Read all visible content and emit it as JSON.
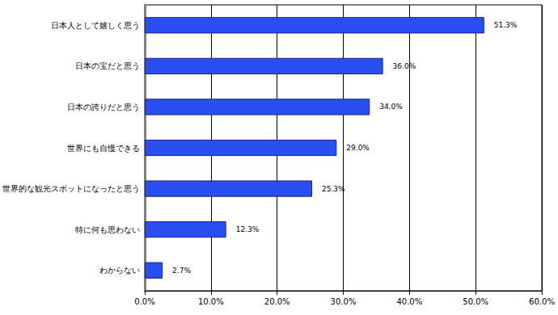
{
  "chart_data": {
    "type": "bar",
    "orientation": "horizontal",
    "categories": [
      "日本人として嬉しく思う",
      "日本の宝だと思う",
      "日本の誇りだと思う",
      "世界にも自慢できる",
      "世界的な観光スポットになったと思う",
      "特に何も思わない",
      "わからない"
    ],
    "values": [
      51.3,
      36.0,
      34.0,
      29.0,
      25.3,
      12.3,
      2.7
    ],
    "value_labels": [
      "51.3%",
      "36.0%",
      "34.0%",
      "29.0%",
      "25.3%",
      "12.3%",
      "2.7%"
    ],
    "data_labels": true,
    "color": "#2a4ff0",
    "xlim": [
      0,
      60
    ],
    "xticks": [
      {
        "value": 0,
        "label": "0.0%"
      },
      {
        "value": 10,
        "label": "10.0%"
      },
      {
        "value": 20,
        "label": "20.0%"
      },
      {
        "value": 30,
        "label": "30.0%"
      },
      {
        "value": 40,
        "label": "40.0%"
      },
      {
        "value": 50,
        "label": "50.0%"
      },
      {
        "value": 60,
        "label": "60.0%"
      }
    ],
    "grid": true
  }
}
